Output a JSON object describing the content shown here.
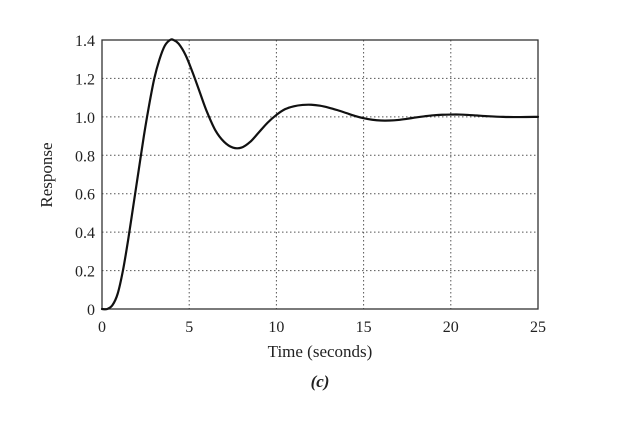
{
  "chart_data": {
    "type": "line",
    "title": "",
    "caption": "(c)",
    "xlabel": "Time (seconds)",
    "ylabel": "Response",
    "xlim": [
      0,
      25
    ],
    "ylim": [
      0,
      1.4
    ],
    "xticks": [
      0,
      5,
      10,
      15,
      20,
      25
    ],
    "yticks": [
      0,
      0.2,
      0.4,
      0.6,
      0.8,
      1.0,
      1.2,
      1.4
    ],
    "xtick_labels": [
      "0",
      "5",
      "10",
      "15",
      "20",
      "25"
    ],
    "ytick_labels": [
      "0",
      "0.2",
      "0.4",
      "0.6",
      "0.8",
      "1.0",
      "1.2",
      "1.4"
    ],
    "grid": true,
    "grid_style": "dotted",
    "legend": null,
    "series": [
      {
        "name": "Response",
        "color": "#111111",
        "x": [
          0,
          0.3,
          0.6,
          0.9,
          1.2,
          1.5,
          1.8,
          2.1,
          2.4,
          2.7,
          3.0,
          3.3,
          3.6,
          3.9,
          4.1,
          4.4,
          4.8,
          5.2,
          5.6,
          6.0,
          6.5,
          7.0,
          7.5,
          8.0,
          8.5,
          9.0,
          9.5,
          10.0,
          10.5,
          11.0,
          11.5,
          12.0,
          12.5,
          13.0,
          13.5,
          14.0,
          14.5,
          15.0,
          15.5,
          16.0,
          16.5,
          17.0,
          17.5,
          18.0,
          18.5,
          19.0,
          19.5,
          20.0,
          20.5,
          21.0,
          21.5,
          22.0,
          23.0,
          24.0,
          25.0
        ],
        "y": [
          0,
          0.0,
          0.02,
          0.08,
          0.2,
          0.36,
          0.54,
          0.72,
          0.9,
          1.06,
          1.2,
          1.3,
          1.37,
          1.4,
          1.4,
          1.38,
          1.32,
          1.23,
          1.13,
          1.03,
          0.93,
          0.87,
          0.84,
          0.84,
          0.87,
          0.92,
          0.97,
          1.01,
          1.04,
          1.055,
          1.062,
          1.063,
          1.058,
          1.048,
          1.035,
          1.02,
          1.005,
          0.993,
          0.985,
          0.981,
          0.981,
          0.984,
          0.99,
          0.997,
          1.003,
          1.008,
          1.011,
          1.012,
          1.012,
          1.01,
          1.007,
          1.004,
          1.0,
          0.999,
          1.0
        ]
      }
    ]
  }
}
